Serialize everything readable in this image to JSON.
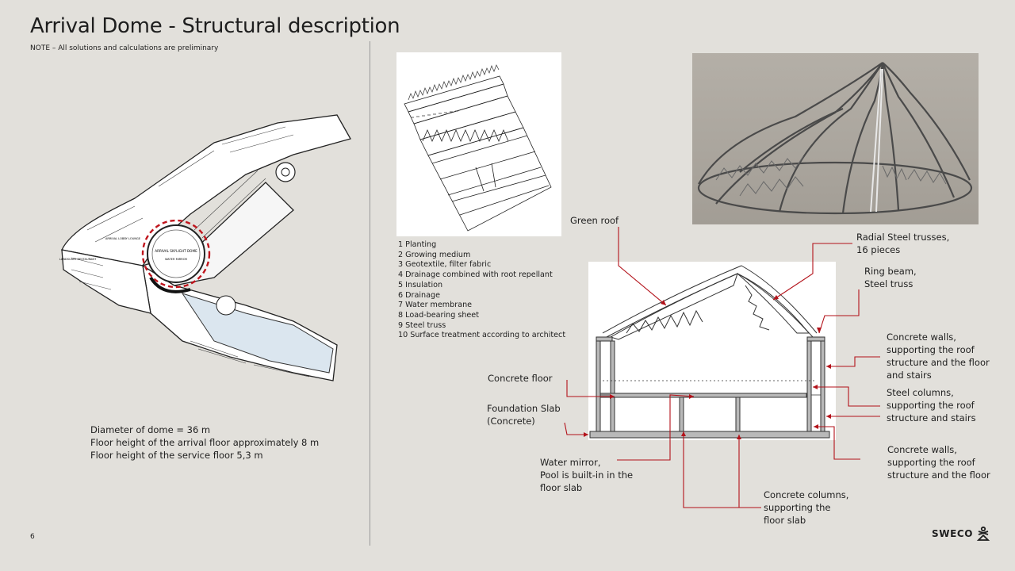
{
  "header": {
    "title": "Arrival Dome - Structural description",
    "note": "NOTE – All solutions and calculations are preliminary"
  },
  "floorplan": {
    "labels": {
      "dome": "ARRIVAL SKYLIGHT DOME",
      "dome_sub": "WATER MIRROR",
      "lobby": "ARRIVAL LOBBY LOUNGE",
      "left": "LANDSCAPE RESTAURANT"
    },
    "highlight_color": "#c0141c"
  },
  "facts": [
    "Diameter of dome = 36 m",
    "Floor height of the arrival floor approximately  8 m",
    "Floor height of the service floor 5,3 m"
  ],
  "roof_detail": {
    "layers": [
      "1 Planting",
      "2 Growing medium",
      "3 Geotextile, filter fabric",
      "4 Drainage combined with root repellant",
      "5  Insulation",
      "6 Drainage",
      "7 Water membrane",
      "8 Load-bearing sheet",
      "9 Steel truss",
      "10 Surface treatment according to architect"
    ]
  },
  "section": {
    "annotations": {
      "green_roof": "Green roof",
      "radial_trusses": "Radial Steel trusses,\n16 pieces",
      "ring_beam": "Ring beam,\nSteel truss",
      "concrete_walls_roof_floor_stairs": "Concrete walls,\nsupporting the roof\nstructure and the floor\nand stairs",
      "steel_columns": "Steel columns,\nsupporting the roof\nstructure and stairs",
      "concrete_walls_roof_floor": "Concrete walls,\nsupporting the roof\nstructure and the floor",
      "concrete_floor": "Concrete  floor",
      "foundation_slab": "Foundation Slab\n(Concrete)",
      "water_mirror": "Water mirror,\nPool is built-in in the\nfloor slab",
      "concrete_columns": "Concrete columns,\nsupporting the\nfloor slab"
    },
    "leader_color": "#b3121a"
  },
  "footer": {
    "page_number": "6",
    "logo_text": "SWECO"
  }
}
